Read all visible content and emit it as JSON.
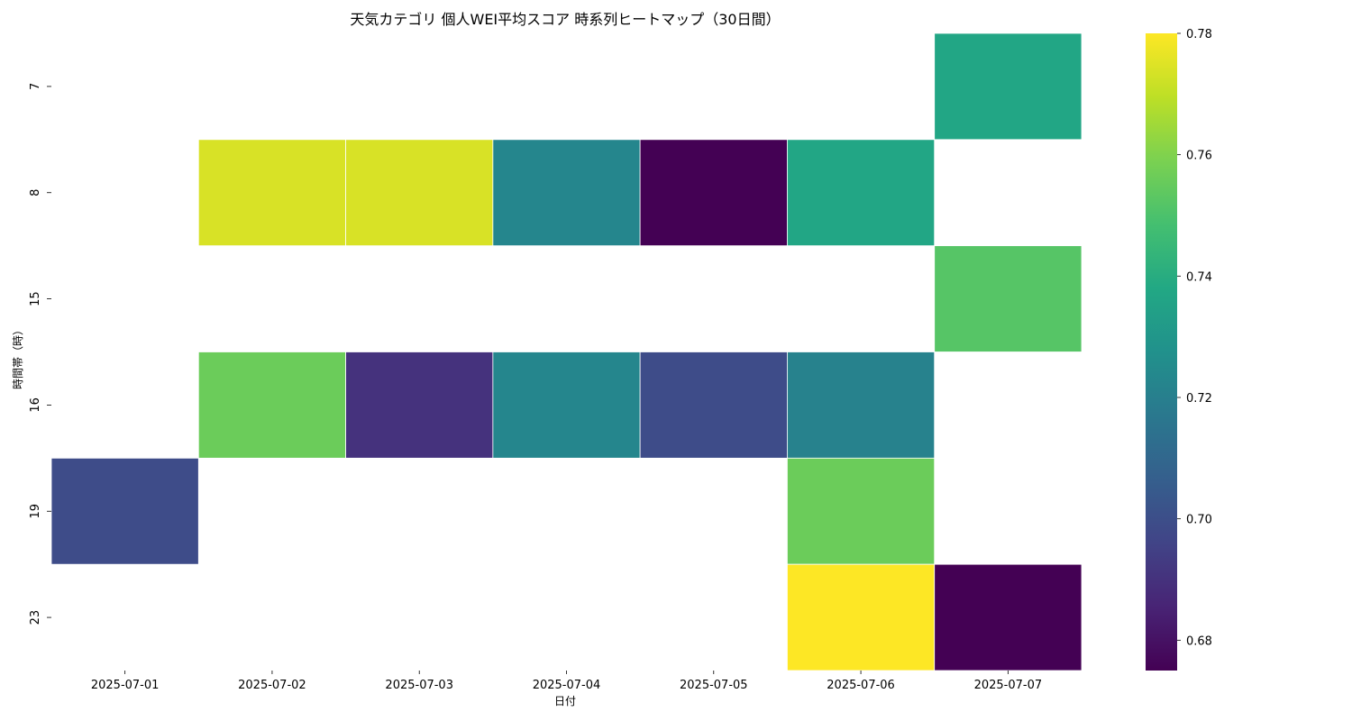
{
  "chart_data": {
    "type": "heatmap",
    "title": "天気カテゴリ 個人WEI平均スコア 時系列ヒートマップ（30日間）",
    "xlabel": "日付",
    "ylabel": "時間帯（時）",
    "x": [
      "2025-07-01",
      "2025-07-02",
      "2025-07-03",
      "2025-07-04",
      "2025-07-05",
      "2025-07-06",
      "2025-07-07"
    ],
    "y": [
      "7",
      "8",
      "15",
      "16",
      "19",
      "23"
    ],
    "values": [
      [
        null,
        null,
        null,
        null,
        null,
        null,
        0.737
      ],
      [
        null,
        0.774,
        0.774,
        0.723,
        0.675,
        0.737,
        null
      ],
      [
        null,
        null,
        null,
        null,
        null,
        null,
        0.752
      ],
      [
        null,
        0.756,
        0.69,
        0.723,
        0.699,
        0.721,
        null
      ],
      [
        0.699,
        null,
        null,
        null,
        null,
        0.756,
        null
      ],
      [
        null,
        null,
        null,
        null,
        null,
        0.78,
        0.675
      ]
    ],
    "colormap": "viridis",
    "colorbar": {
      "min": 0.675,
      "max": 0.78,
      "ticks": [
        "0.68",
        "0.70",
        "0.72",
        "0.74",
        "0.76",
        "0.78"
      ]
    },
    "grid": false,
    "legend": "colorbar-right"
  }
}
